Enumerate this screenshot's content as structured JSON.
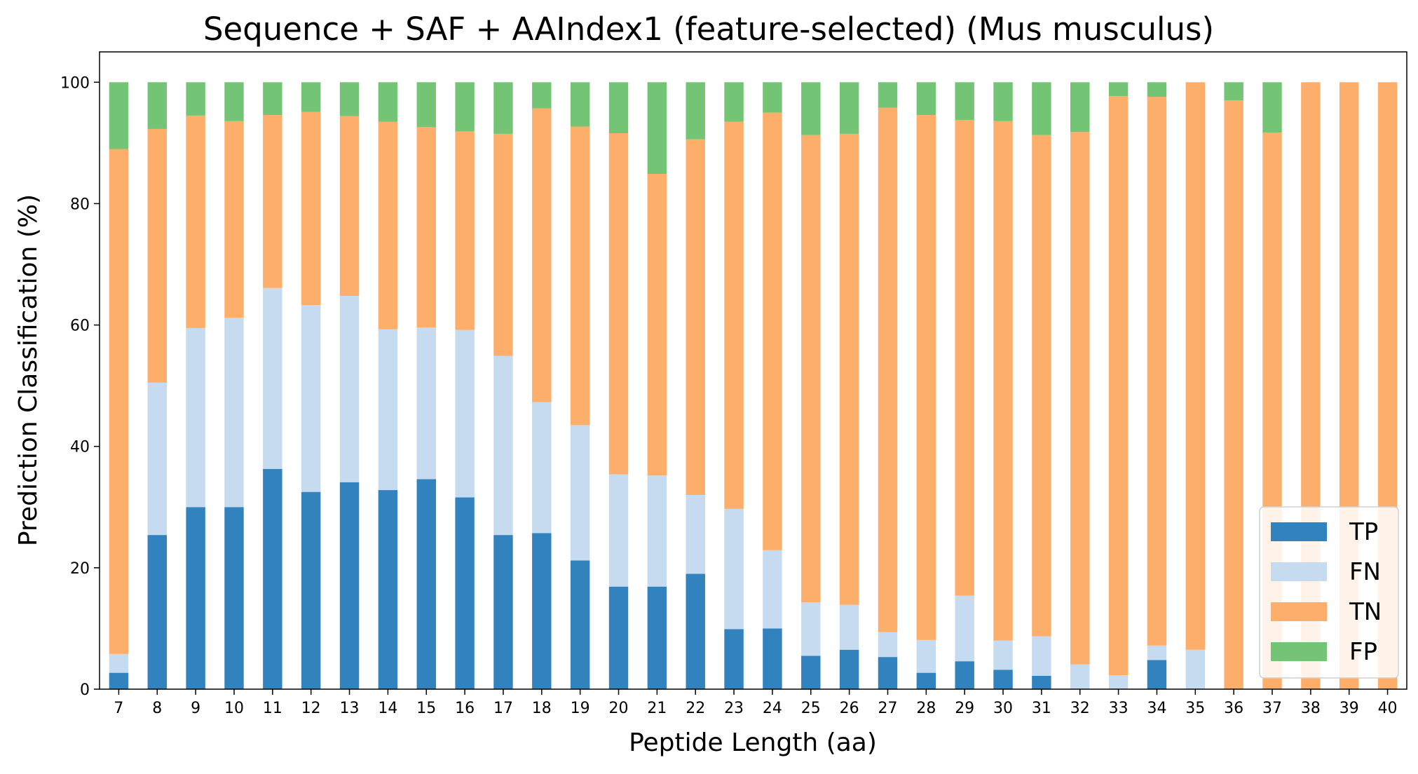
{
  "chart_data": {
    "type": "bar",
    "stacked": true,
    "title": "Sequence + SAF + AAIndex1 (feature-selected) (Mus musculus)",
    "xlabel": "Peptide Length (aa)",
    "ylabel": "Prediction Classification (%)",
    "ylim": [
      0,
      105
    ],
    "yticks": [
      "0",
      "20",
      "40",
      "60",
      "80",
      "100"
    ],
    "grid": false,
    "legend_position": "bottom-right",
    "categories": [
      "7",
      "8",
      "9",
      "10",
      "11",
      "12",
      "13",
      "14",
      "15",
      "16",
      "17",
      "18",
      "19",
      "20",
      "21",
      "22",
      "23",
      "24",
      "25",
      "26",
      "27",
      "28",
      "29",
      "30",
      "31",
      "32",
      "33",
      "34",
      "35",
      "36",
      "37",
      "38",
      "39",
      "40"
    ],
    "series": [
      {
        "name": "TP",
        "color": "#3182bd",
        "values": [
          2.7,
          25.4,
          30.0,
          30.0,
          36.3,
          32.5,
          34.1,
          32.8,
          34.6,
          31.6,
          25.4,
          25.7,
          21.2,
          16.9,
          16.9,
          19.0,
          9.9,
          10.0,
          5.5,
          6.5,
          5.3,
          2.7,
          4.6,
          3.2,
          2.2,
          0,
          0,
          4.8,
          0,
          0,
          0,
          0,
          0,
          0
        ]
      },
      {
        "name": "FN",
        "color": "#c6dbef",
        "values": [
          3.1,
          25.1,
          29.5,
          31.2,
          29.8,
          30.8,
          30.7,
          26.5,
          25.0,
          27.6,
          29.5,
          21.6,
          22.3,
          18.5,
          18.3,
          13.0,
          19.8,
          12.9,
          8.8,
          7.4,
          4.1,
          5.4,
          10.8,
          4.8,
          6.5,
          4.1,
          2.3,
          2.4,
          6.5,
          0,
          0,
          0,
          0,
          0
        ]
      },
      {
        "name": "TN",
        "color": "#fdae6b",
        "values": [
          83.2,
          41.8,
          35.0,
          32.4,
          28.5,
          31.8,
          29.6,
          34.2,
          33.0,
          32.7,
          36.6,
          48.4,
          49.2,
          56.2,
          49.7,
          58.6,
          63.8,
          72.1,
          77.0,
          77.6,
          86.4,
          86.5,
          78.4,
          85.6,
          82.6,
          87.7,
          95.4,
          90.4,
          93.5,
          97.0,
          91.7,
          100,
          100,
          100
        ]
      },
      {
        "name": "FP",
        "color": "#74c476",
        "values": [
          11.0,
          7.7,
          5.5,
          6.4,
          5.4,
          4.9,
          5.6,
          6.5,
          7.4,
          8.1,
          8.5,
          4.3,
          7.3,
          8.4,
          15.1,
          9.4,
          6.5,
          5.0,
          8.7,
          8.5,
          4.2,
          5.4,
          6.2,
          6.4,
          8.7,
          8.2,
          2.3,
          2.4,
          0,
          3.0,
          8.3,
          0,
          0,
          0
        ]
      }
    ]
  }
}
